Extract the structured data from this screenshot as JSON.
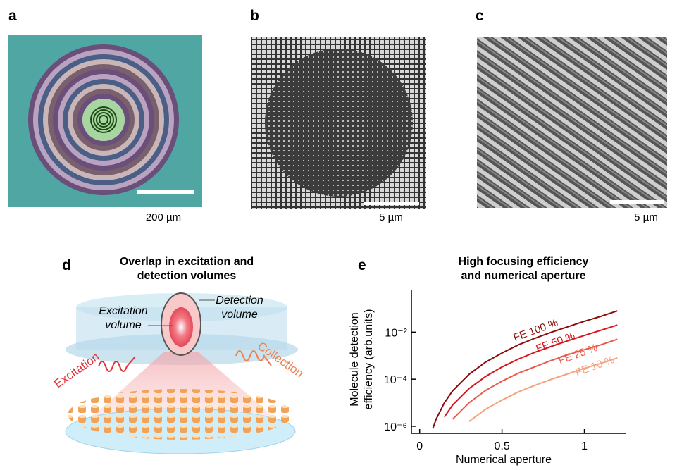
{
  "panels": {
    "a": {
      "label": "a",
      "scale_bar": "200 µm"
    },
    "b": {
      "label": "b",
      "scale_bar": "5 µm"
    },
    "c": {
      "label": "c",
      "scale_bar": "5 µm"
    },
    "d": {
      "label": "d",
      "title": [
        "Overlap in excitation and",
        "detection volumes"
      ],
      "detection_volume": [
        "Detection",
        "volume"
      ],
      "excitation_volume": [
        "Excitation",
        "volume"
      ],
      "excitation": "Excitation",
      "collection": "Collection"
    },
    "e": {
      "label": "e"
    }
  },
  "chart_data": {
    "type": "line",
    "title": [
      "High focusing efficiency",
      "and numerical aperture"
    ],
    "x_label": "Numerical aperture",
    "y_label": [
      "Molecule detection",
      "efficiency (arb.units)"
    ],
    "x": [
      0.08,
      0.1,
      0.15,
      0.2,
      0.3,
      0.4,
      0.5,
      0.6,
      0.7,
      0.8,
      0.9,
      1.0,
      1.1,
      1.2
    ],
    "series": [
      {
        "name": "FE 100 %",
        "color": "#8b0a0a",
        "values": [
          8e-07,
          2e-06,
          1e-05,
          3.2e-05,
          0.00016,
          0.00053,
          0.0013,
          0.0029,
          0.0055,
          0.01,
          0.017,
          0.029,
          0.047,
          0.08
        ]
      },
      {
        "name": "FE 50 %",
        "color": "#d9141b",
        "values": [
          null,
          null,
          2.5e-06,
          8e-06,
          4e-05,
          0.00013,
          0.00033,
          0.00072,
          0.0014,
          0.0025,
          0.0043,
          0.0072,
          0.012,
          0.02
        ]
      },
      {
        "name": "FE 25 %",
        "color": "#ea5a4a",
        "values": [
          null,
          null,
          null,
          2e-06,
          1e-05,
          3.3e-05,
          8.3e-05,
          0.00018,
          0.00034,
          0.00063,
          0.0011,
          0.0018,
          0.0029,
          0.005
        ]
      },
      {
        "name": "FE 10 %",
        "color": "#f6a27e",
        "values": [
          null,
          null,
          null,
          null,
          1.6e-06,
          5.3e-06,
          1.3e-05,
          2.9e-05,
          5.5e-05,
          0.0001,
          0.00017,
          0.00029,
          0.00047,
          0.0008
        ]
      }
    ],
    "xlim": [
      -0.05,
      1.25
    ],
    "xticks": [
      0,
      0.5,
      1
    ],
    "ylim": [
      5e-07,
      0.6
    ],
    "yticks": [
      {
        "value": 1e-06,
        "label": "10⁻⁶"
      },
      {
        "value": 0.0001,
        "label": "10⁻⁴"
      },
      {
        "value": 0.01,
        "label": "10⁻²"
      }
    ],
    "log_y": true
  }
}
